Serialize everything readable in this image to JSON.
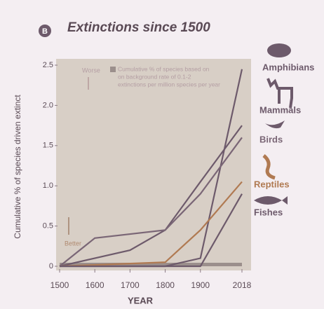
{
  "chart_data": {
    "type": "line",
    "panel": "B",
    "title": "Extinctions since 1500",
    "ylabel": "Cumulative % of species driven extinct",
    "xlabel": "YEAR",
    "annotations": {
      "worse": "Worse",
      "better": "Better",
      "background": [
        "Cumulative % of species based on",
        "on background rate of 0.1-2",
        "extinctions per million species per year"
      ]
    },
    "xlim": [
      1500,
      2018
    ],
    "xticks": [
      1500,
      1600,
      1700,
      1800,
      1900,
      2018
    ],
    "ylim": [
      0,
      2.5
    ],
    "yticks": [
      0,
      0.5,
      {
        "value": 1,
        "label": "1.0"
      },
      1.5,
      {
        "value": 2,
        "label": "2.0"
      },
      2.5
    ],
    "series": [
      {
        "name": "Amphibians",
        "color": "#6d5a6b",
        "x": [
          1500,
          1800,
          1900,
          2018
        ],
        "values": [
          0,
          0,
          0.1,
          2.45
        ]
      },
      {
        "name": "Mammals",
        "color": "#6d5a6b",
        "x": [
          1500,
          1700,
          1800,
          1900,
          2018
        ],
        "values": [
          0,
          0.2,
          0.45,
          1.05,
          1.75
        ]
      },
      {
        "name": "Birds",
        "color": "#7a6676",
        "x": [
          1500,
          1600,
          1800,
          1900,
          2018
        ],
        "values": [
          0,
          0.35,
          0.45,
          0.9,
          1.6
        ]
      },
      {
        "name": "Reptiles",
        "color": "#b07a52",
        "x": [
          1500,
          1800,
          1900,
          2018
        ],
        "values": [
          0,
          0.05,
          0.45,
          1.05
        ]
      },
      {
        "name": "Fishes",
        "color": "#6d5a6b",
        "x": [
          1500,
          1900,
          2018
        ],
        "values": [
          0,
          0,
          0.9
        ]
      }
    ]
  }
}
